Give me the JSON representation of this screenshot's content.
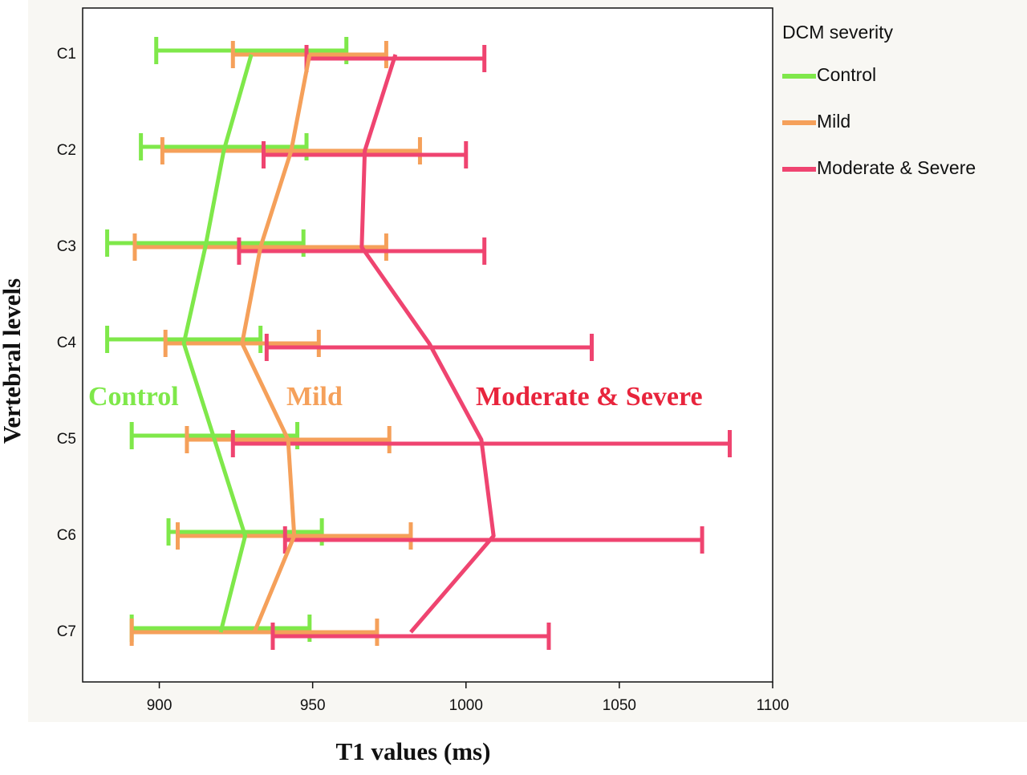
{
  "chart_data": {
    "type": "errorbar-line",
    "x_label": "T1 values (ms)",
    "y_label": "Vertebral levels",
    "categories": [
      "C1",
      "C2",
      "C3",
      "C4",
      "C5",
      "C6",
      "C7"
    ],
    "xlim": [
      875,
      1100
    ],
    "xticks": [
      900,
      950,
      1000,
      1050,
      1100
    ],
    "legend_title": "DCM severity",
    "legend_position": "right",
    "series": [
      {
        "name": "Control",
        "color": "#7fe84a",
        "values": [
          930,
          921,
          915,
          908,
          918,
          928,
          920
        ],
        "errors": [
          31,
          27,
          32,
          25,
          27,
          25,
          29
        ]
      },
      {
        "name": "Mild",
        "color": "#f5a05a",
        "values": [
          949,
          943,
          933,
          927,
          942,
          944,
          931
        ],
        "errors": [
          25,
          42,
          41,
          25,
          33,
          38,
          40
        ]
      },
      {
        "name": "Moderate & Severe",
        "color": "#ef4470",
        "values": [
          977,
          967,
          966,
          988,
          1005,
          1009,
          982
        ],
        "errors": [
          29,
          33,
          40,
          53,
          81,
          68,
          45
        ]
      }
    ],
    "annotations": [
      {
        "text": "Control",
        "color": "#7fe84a"
      },
      {
        "text": "Mild",
        "color": "#f5a05a"
      },
      {
        "text": "Moderate & Severe",
        "color": "#e8243c"
      }
    ]
  }
}
